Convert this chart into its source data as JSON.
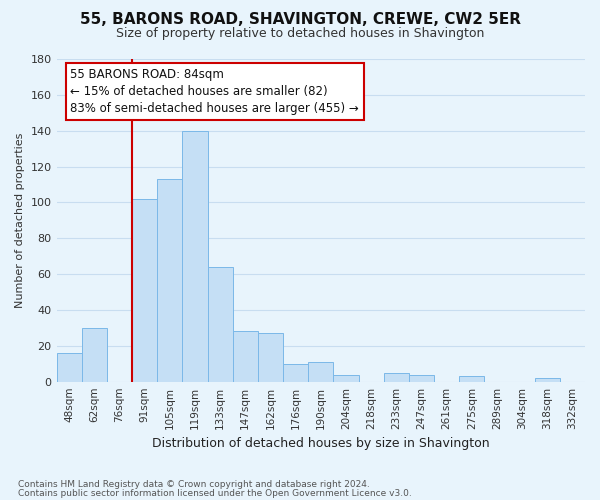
{
  "title": "55, BARONS ROAD, SHAVINGTON, CREWE, CW2 5ER",
  "subtitle": "Size of property relative to detached houses in Shavington",
  "xlabel": "Distribution of detached houses by size in Shavington",
  "ylabel": "Number of detached properties",
  "bin_labels": [
    "48sqm",
    "62sqm",
    "76sqm",
    "91sqm",
    "105sqm",
    "119sqm",
    "133sqm",
    "147sqm",
    "162sqm",
    "176sqm",
    "190sqm",
    "204sqm",
    "218sqm",
    "233sqm",
    "247sqm",
    "261sqm",
    "275sqm",
    "289sqm",
    "304sqm",
    "318sqm",
    "332sqm"
  ],
  "bar_heights": [
    16,
    30,
    0,
    102,
    113,
    140,
    64,
    28,
    27,
    10,
    11,
    4,
    0,
    5,
    4,
    0,
    3,
    0,
    0,
    2,
    0
  ],
  "bar_color": "#c5dff5",
  "bar_edge_color": "#7bb8e8",
  "vline_x_idx": 3,
  "vline_color": "#cc0000",
  "annotation_title": "55 BARONS ROAD: 84sqm",
  "annotation_line1": "← 15% of detached houses are smaller (82)",
  "annotation_line2": "83% of semi-detached houses are larger (455) →",
  "annotation_box_facecolor": "#ffffff",
  "annotation_box_edgecolor": "#cc0000",
  "ylim": [
    0,
    180
  ],
  "yticks": [
    0,
    20,
    40,
    60,
    80,
    100,
    120,
    140,
    160,
    180
  ],
  "footer_line1": "Contains HM Land Registry data © Crown copyright and database right 2024.",
  "footer_line2": "Contains public sector information licensed under the Open Government Licence v3.0.",
  "bg_color": "#e8f4fc",
  "grid_color": "#c8ddf0",
  "title_fontsize": 11,
  "subtitle_fontsize": 9,
  "ylabel_fontsize": 8,
  "xlabel_fontsize": 9,
  "tick_fontsize": 7.5,
  "footer_fontsize": 6.5,
  "ann_fontsize": 8.5
}
